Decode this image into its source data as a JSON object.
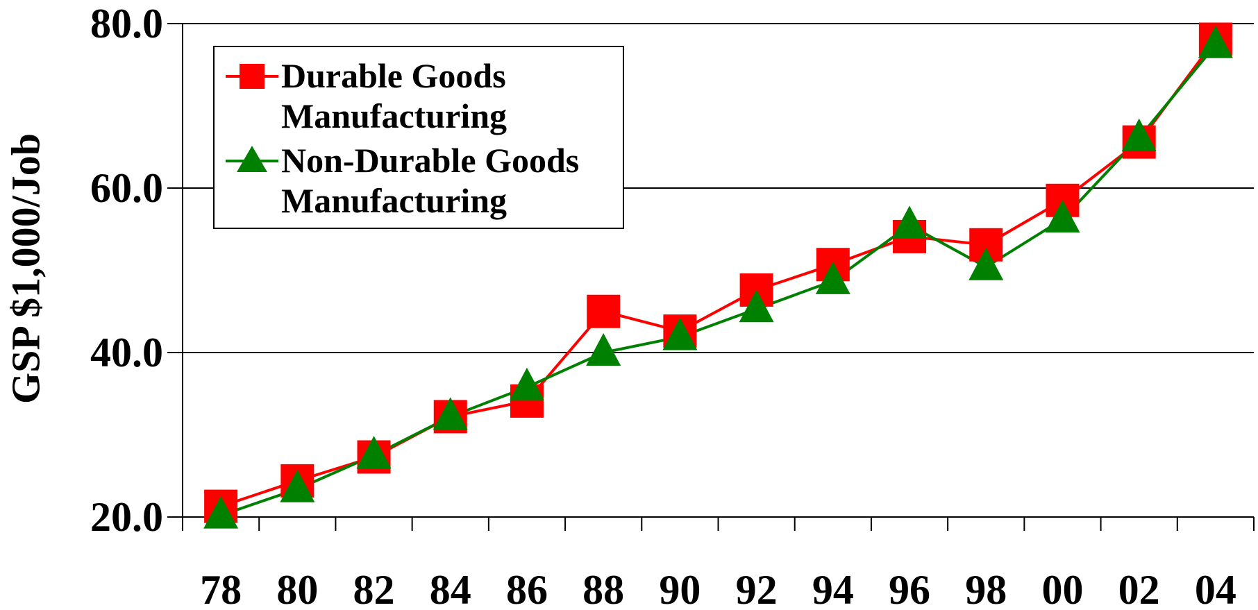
{
  "chart_data": {
    "type": "line",
    "y_label": "GSP $1,000/Job",
    "categories": [
      "78",
      "80",
      "82",
      "84",
      "86",
      "88",
      "90",
      "92",
      "94",
      "96",
      "98",
      "00",
      "02",
      "04"
    ],
    "series": [
      {
        "name": "Durable Goods Manufacturing",
        "color": "#ff0000",
        "marker": "square",
        "values": [
          21.3,
          24.4,
          27.3,
          32.2,
          34.1,
          45.0,
          42.6,
          47.6,
          50.7,
          54.1,
          53.1,
          58.5,
          65.6,
          78.1
        ]
      },
      {
        "name": "Non-Durable Goods Manufacturing",
        "color": "#008000",
        "marker": "triangle",
        "values": [
          20.2,
          23.4,
          27.5,
          32.2,
          35.8,
          40.0,
          41.9,
          45.3,
          48.7,
          55.5,
          50.4,
          56.2,
          66.1,
          77.4
        ]
      }
    ],
    "ylim": [
      20,
      80
    ],
    "yticks": [
      {
        "value": 20,
        "label": "20.0"
      },
      {
        "value": 40,
        "label": "40.0"
      },
      {
        "value": 60,
        "label": "60.0"
      },
      {
        "value": 80,
        "label": "80.0"
      }
    ],
    "grid": true
  }
}
